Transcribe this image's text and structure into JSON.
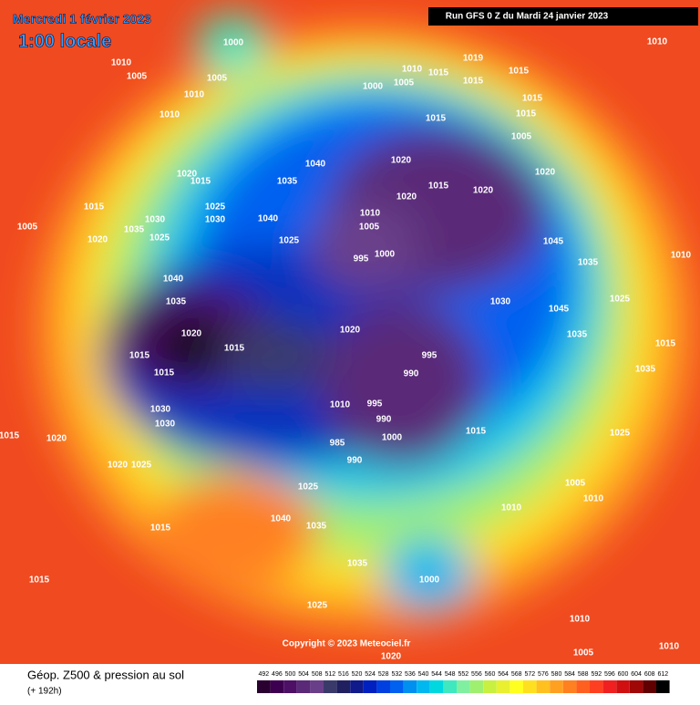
{
  "header": {
    "date": "Mercredi 1 février 2023",
    "time": "1:00 locale",
    "run": "Run GFS 0 Z du Mardi 24 janvier 2023"
  },
  "copyright": "Copyright © 2023 Meteociel.fr",
  "footer": {
    "title": "Géop. Z500 & pression au sol",
    "lead": "(+ 192h)"
  },
  "legend": {
    "values": [
      492,
      496,
      500,
      504,
      508,
      512,
      516,
      520,
      524,
      528,
      532,
      536,
      540,
      544,
      548,
      552,
      556,
      560,
      564,
      568,
      572,
      576,
      580,
      584,
      588,
      592,
      596,
      600,
      604,
      608,
      612
    ],
    "colors": [
      "#2a0030",
      "#3d0050",
      "#4d1066",
      "#5a2a78",
      "#6a3f8a",
      "#3a3a6a",
      "#202060",
      "#101a8a",
      "#0020c0",
      "#0040e0",
      "#0060f0",
      "#0090f0",
      "#00b8f0",
      "#00d8e0",
      "#40e8c0",
      "#80f0a0",
      "#a0f070",
      "#c8f040",
      "#e8f030",
      "#ffff20",
      "#ffe020",
      "#ffc020",
      "#ffa020",
      "#ff8020",
      "#ff6020",
      "#ff4020",
      "#f02020",
      "#d01010",
      "#a00808",
      "#600000",
      "#000000"
    ]
  },
  "isobar_labels": [
    "1000",
    "1005",
    "1010",
    "1005",
    "1010",
    "1010",
    "1010",
    "1015",
    "1010",
    "1005",
    "1000",
    "1019",
    "1015",
    "1015",
    "1015",
    "1015",
    "1005",
    "1015",
    "1020",
    "1020",
    "1020",
    "1015",
    "1020",
    "1040",
    "1035",
    "1040",
    "1025",
    "1010",
    "1005",
    "1000",
    "995",
    "1045",
    "1035",
    "1025",
    "1030",
    "1045",
    "1035",
    "1040",
    "1035",
    "1020",
    "1015",
    "1015",
    "1015",
    "1020",
    "995",
    "990",
    "1010",
    "995",
    "990",
    "1000",
    "985",
    "990",
    "1015",
    "1030",
    "1030",
    "1020",
    "1020",
    "1025",
    "1015",
    "1025",
    "1040",
    "1035",
    "1015",
    "1015",
    "1010",
    "1005",
    "1010",
    "1000",
    "1035",
    "1025",
    "1020",
    "1010",
    "1005",
    "1010",
    "1010",
    "1015",
    "1035",
    "1025",
    "1020",
    "1005",
    "1015",
    "1020",
    "1015",
    "1030",
    "1025",
    "1035",
    "1025",
    "1030"
  ]
}
